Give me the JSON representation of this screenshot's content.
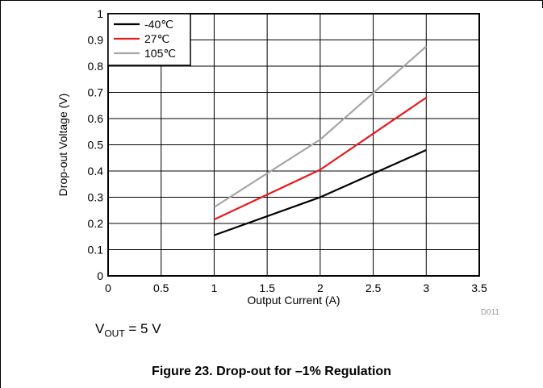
{
  "chart_data": {
    "type": "line",
    "xlabel": "Output Current (A)",
    "ylabel": "Drop-out Voltage (V)",
    "xlim": [
      0,
      3.5
    ],
    "ylim": [
      0,
      1
    ],
    "xticks": [
      "0",
      "0.5",
      "1",
      "1.5",
      "2",
      "2.5",
      "3",
      "3.5"
    ],
    "yticks": [
      "0",
      "0.1",
      "0.2",
      "0.3",
      "0.4",
      "0.5",
      "0.6",
      "0.7",
      "0.8",
      "0.9",
      "1"
    ],
    "grid": true,
    "legend_position": "top-left",
    "x": [
      1,
      2,
      3
    ],
    "series": [
      {
        "name": "-40℃",
        "color": "#000000",
        "values": [
          0.155,
          0.3,
          0.48
        ]
      },
      {
        "name": "27℃",
        "color": "#e8191d",
        "values": [
          0.215,
          0.405,
          0.68
        ]
      },
      {
        "name": "105℃",
        "color": "#a6a6a6",
        "values": [
          0.262,
          0.52,
          0.875
        ]
      }
    ],
    "figure_code": "D011"
  },
  "condition": {
    "prefix": "V",
    "sub": "OUT",
    "suffix": " = 5 V"
  },
  "caption": "Figure 23. Drop-out for –1% Regulation"
}
